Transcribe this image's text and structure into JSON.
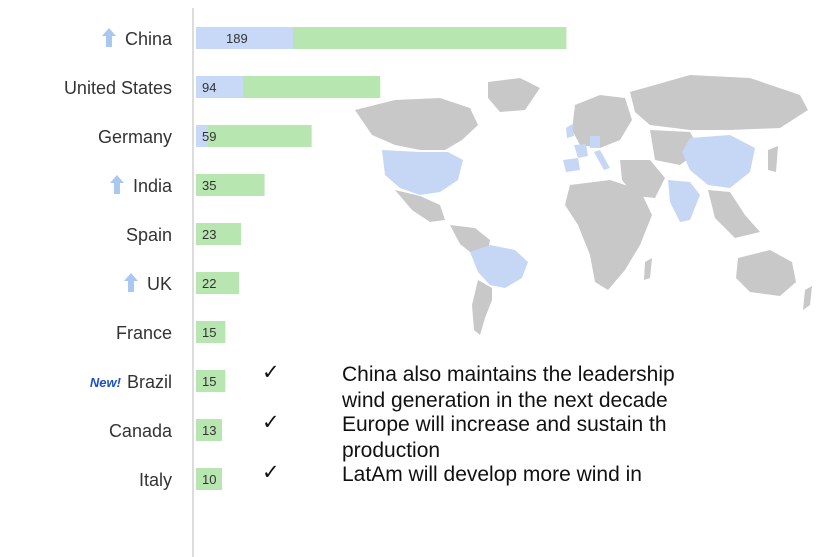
{
  "chart_data": {
    "type": "bar",
    "orientation": "horizontal",
    "categories": [
      "China",
      "United States",
      "Germany",
      "India",
      "Spain",
      "UK",
      "France",
      "Brazil",
      "Canada",
      "Italy"
    ],
    "values": [
      189,
      94,
      59,
      35,
      23,
      22,
      15,
      15,
      13,
      10
    ],
    "trend_up": [
      "China",
      "India",
      "UK"
    ],
    "new_tag": {
      "country": "Brazil",
      "text": "New!"
    },
    "colors": {
      "bar_green": "#b8e6b0",
      "bar_blue": "#c8d9f7",
      "arrow": "#a9c8f0",
      "map_highlight": "#c5d7f5",
      "map_land": "#c8c8c8"
    },
    "grid": false,
    "legend": "none"
  },
  "bullets": [
    {
      "line1": "China also maintains the leadership",
      "line2": "wind generation in the next decade"
    },
    {
      "line1": "Europe will increase and sustain th",
      "line2": "production"
    },
    {
      "line1": "LatAm will develop more wind in",
      "line2": ""
    }
  ]
}
